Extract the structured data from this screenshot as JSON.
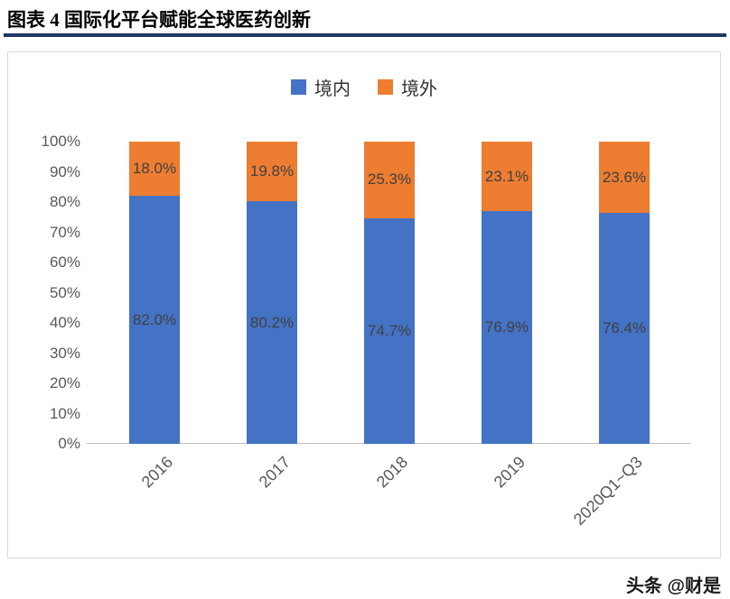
{
  "page": {
    "title": "图表 4 国际化平台赋能全球医药创新",
    "watermark": "头条 @财是"
  },
  "chart_data": {
    "type": "bar",
    "stacked": true,
    "title": "",
    "categories": [
      "2016",
      "2017",
      "2018",
      "2019",
      "2020Q1~Q3"
    ],
    "series": [
      {
        "name": "境内",
        "color": "#4472C4",
        "values": [
          82.0,
          80.2,
          74.7,
          76.9,
          76.4
        ],
        "labels": [
          "82.0%",
          "80.2%",
          "74.7%",
          "76.9%",
          "76.4%"
        ]
      },
      {
        "name": "境外",
        "color": "#ED7D31",
        "values": [
          18.0,
          19.8,
          25.3,
          23.1,
          23.6
        ],
        "labels": [
          "18.0%",
          "19.8%",
          "25.3%",
          "23.1%",
          "23.6%"
        ]
      }
    ],
    "ylim": [
      0,
      100
    ],
    "ytick_step": 10,
    "yticks": [
      "0%",
      "10%",
      "20%",
      "30%",
      "40%",
      "50%",
      "60%",
      "70%",
      "80%",
      "90%",
      "100%"
    ],
    "grid": false,
    "legend_position": "top"
  },
  "colors": {
    "series_domestic": "#4472C4",
    "series_overseas": "#ED7D31",
    "title_rule": "#1F3864",
    "axis_text": "#595959",
    "data_label_text": "#404040",
    "axis_line": "#BFBFBF",
    "frame_border": "#D9D9D9"
  }
}
